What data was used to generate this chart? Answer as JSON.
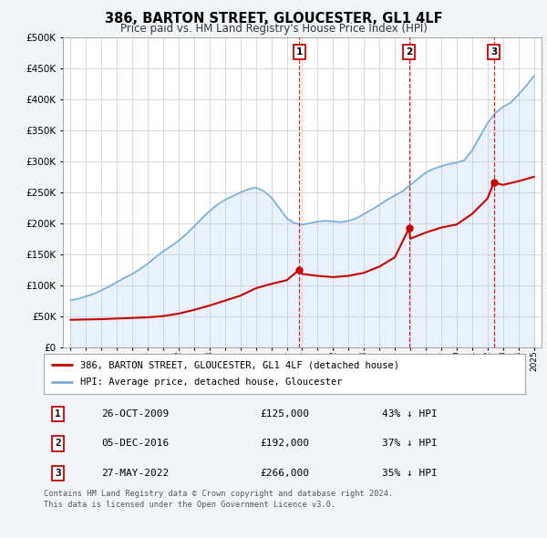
{
  "title": "386, BARTON STREET, GLOUCESTER, GL1 4LF",
  "subtitle": "Price paid vs. HM Land Registry's House Price Index (HPI)",
  "legend_label_red": "386, BARTON STREET, GLOUCESTER, GL1 4LF (detached house)",
  "legend_label_blue": "HPI: Average price, detached house, Gloucester",
  "footer_line1": "Contains HM Land Registry data © Crown copyright and database right 2024.",
  "footer_line2": "This data is licensed under the Open Government Licence v3.0.",
  "sales": [
    {
      "num": 1,
      "date": "26-OCT-2009",
      "price": "£125,000",
      "hpi": "43% ↓ HPI",
      "year": 2009.82
    },
    {
      "num": 2,
      "date": "05-DEC-2016",
      "price": "£192,000",
      "hpi": "37% ↓ HPI",
      "year": 2016.92
    },
    {
      "num": 3,
      "date": "27-MAY-2022",
      "price": "£266,000",
      "hpi": "35% ↓ HPI",
      "year": 2022.41
    }
  ],
  "sale_prices": [
    125000,
    192000,
    266000
  ],
  "hpi_x": [
    1995.0,
    1995.5,
    1996.0,
    1996.5,
    1997.0,
    1997.5,
    1998.0,
    1998.5,
    1999.0,
    1999.5,
    2000.0,
    2000.5,
    2001.0,
    2001.5,
    2002.0,
    2002.5,
    2003.0,
    2003.5,
    2004.0,
    2004.5,
    2005.0,
    2005.5,
    2006.0,
    2006.5,
    2007.0,
    2007.5,
    2008.0,
    2008.5,
    2009.0,
    2009.5,
    2010.0,
    2010.5,
    2011.0,
    2011.5,
    2012.0,
    2012.5,
    2013.0,
    2013.5,
    2014.0,
    2014.5,
    2015.0,
    2015.5,
    2016.0,
    2016.5,
    2017.0,
    2017.5,
    2018.0,
    2018.5,
    2019.0,
    2019.5,
    2020.0,
    2020.5,
    2021.0,
    2021.5,
    2022.0,
    2022.5,
    2023.0,
    2023.5,
    2024.0,
    2024.5,
    2025.0
  ],
  "hpi_y": [
    76000,
    78000,
    82000,
    86000,
    92000,
    98000,
    105000,
    112000,
    118000,
    126000,
    135000,
    145000,
    155000,
    163000,
    172000,
    183000,
    195000,
    208000,
    220000,
    230000,
    238000,
    244000,
    250000,
    255000,
    258000,
    252000,
    242000,
    225000,
    208000,
    200000,
    198000,
    200000,
    203000,
    204000,
    203000,
    202000,
    204000,
    208000,
    215000,
    222000,
    230000,
    238000,
    245000,
    252000,
    262000,
    272000,
    282000,
    288000,
    292000,
    296000,
    298000,
    302000,
    318000,
    340000,
    362000,
    378000,
    388000,
    395000,
    408000,
    422000,
    438000
  ],
  "price_x": [
    1995.0,
    1996.0,
    1997.0,
    1998.0,
    1999.0,
    2000.0,
    2001.0,
    2002.0,
    2003.0,
    2004.0,
    2005.0,
    2006.0,
    2007.0,
    2008.0,
    2009.0,
    2009.82,
    2010.0,
    2011.0,
    2012.0,
    2013.0,
    2014.0,
    2015.0,
    2016.0,
    2016.92,
    2017.0,
    2018.0,
    2019.0,
    2020.0,
    2021.0,
    2022.0,
    2022.41,
    2023.0,
    2024.0,
    2025.0
  ],
  "price_y": [
    44000,
    44500,
    45000,
    46000,
    47000,
    48000,
    50000,
    54000,
    60000,
    67000,
    75000,
    83000,
    95000,
    102000,
    108000,
    125000,
    118000,
    115000,
    113000,
    115000,
    120000,
    130000,
    145000,
    192000,
    175000,
    185000,
    193000,
    198000,
    215000,
    240000,
    266000,
    262000,
    268000,
    275000
  ],
  "ylim": [
    0,
    500000
  ],
  "xlim": [
    1994.5,
    2025.5
  ],
  "bg_color": "#f2f5f8",
  "plot_bg": "#ffffff",
  "red_color": "#cc0000",
  "blue_color": "#7aadd4",
  "blue_fill": "#aaccee",
  "vline_color": "#cc0000",
  "grid_color": "#cccccc"
}
